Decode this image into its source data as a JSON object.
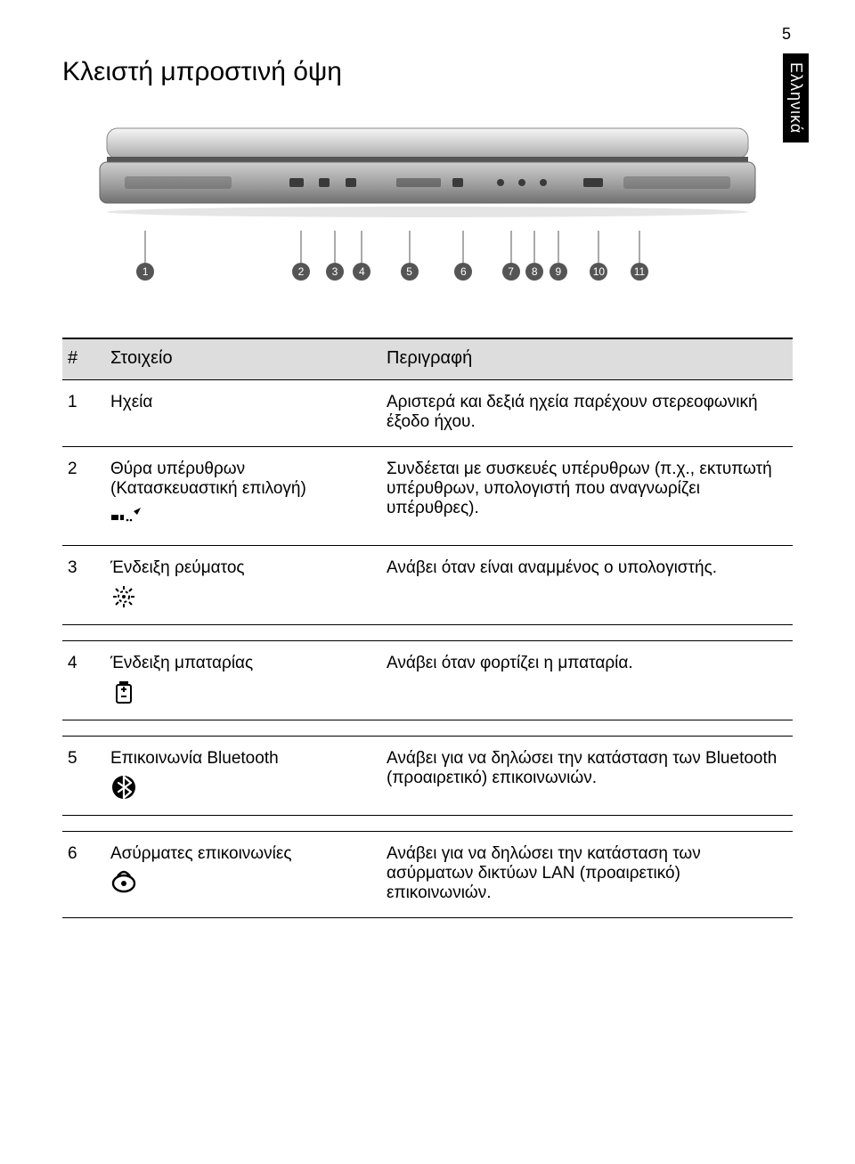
{
  "page_number": "5",
  "language_tab": "Ελληνικά",
  "title": "Κλειστή μπροστινή όψη",
  "callouts": [
    {
      "n": "1",
      "left_pct": 7
    },
    {
      "n": "2",
      "left_pct": 30
    },
    {
      "n": "3",
      "left_pct": 35
    },
    {
      "n": "4",
      "left_pct": 39
    },
    {
      "n": "5",
      "left_pct": 46
    },
    {
      "n": "6",
      "left_pct": 54
    },
    {
      "n": "7",
      "left_pct": 61
    },
    {
      "n": "8",
      "left_pct": 64.5
    },
    {
      "n": "9",
      "left_pct": 68
    },
    {
      "n": "10",
      "left_pct": 74
    },
    {
      "n": "11",
      "left_pct": 80
    }
  ],
  "table": {
    "headers": {
      "num": "#",
      "item": "Στοιχείο",
      "desc": "Περιγραφή"
    },
    "rows": [
      {
        "num": "1",
        "item": "Ηχεία",
        "icon": null,
        "desc": "Αριστερά και δεξιά ηχεία παρέχουν στερεοφωνική έξοδο ήχου."
      },
      {
        "num": "2",
        "item": "Θύρα υπέρυθρων (Κατασκευαστική επιλογή)",
        "icon": "ir",
        "desc": "Συνδέεται με συσκευές υπέρυθρων (π.χ., εκτυπωτή υπέρυθρων, υπολογιστή που αναγνωρίζει υπέρυθρες)."
      },
      {
        "num": "3",
        "item": "Ένδειξη ρεύματος",
        "icon": "power",
        "desc": "Ανάβει όταν είναι αναμμένος ο υπολογιστής."
      },
      {
        "num": "4",
        "item": "Ένδειξη μπαταρίας",
        "icon": "battery",
        "desc": "Ανάβει όταν φορτίζει η μπαταρία."
      },
      {
        "num": "5",
        "item": "Επικοινωνία Bluetooth",
        "icon": "bluetooth",
        "desc": "Ανάβει για να δηλώσει την κατάσταση των Bluetooth (προαιρετικό) επικοινωνιών."
      },
      {
        "num": "6",
        "item": "Ασύρματες επικοινωνίες",
        "icon": "wireless",
        "desc": "Ανάβει για να δηλώσει την κατάσταση των ασύρματων δικτύων LAN (προαιρετικό) επικοινωνιών."
      }
    ]
  },
  "colors": {
    "text": "#000000",
    "bg": "#ffffff",
    "header_band": "#dddddd",
    "callout_fill": "#555555",
    "laptop_light": "#e6e6e6",
    "laptop_mid": "#bfbfbf",
    "laptop_dark": "#8e8e8e"
  }
}
